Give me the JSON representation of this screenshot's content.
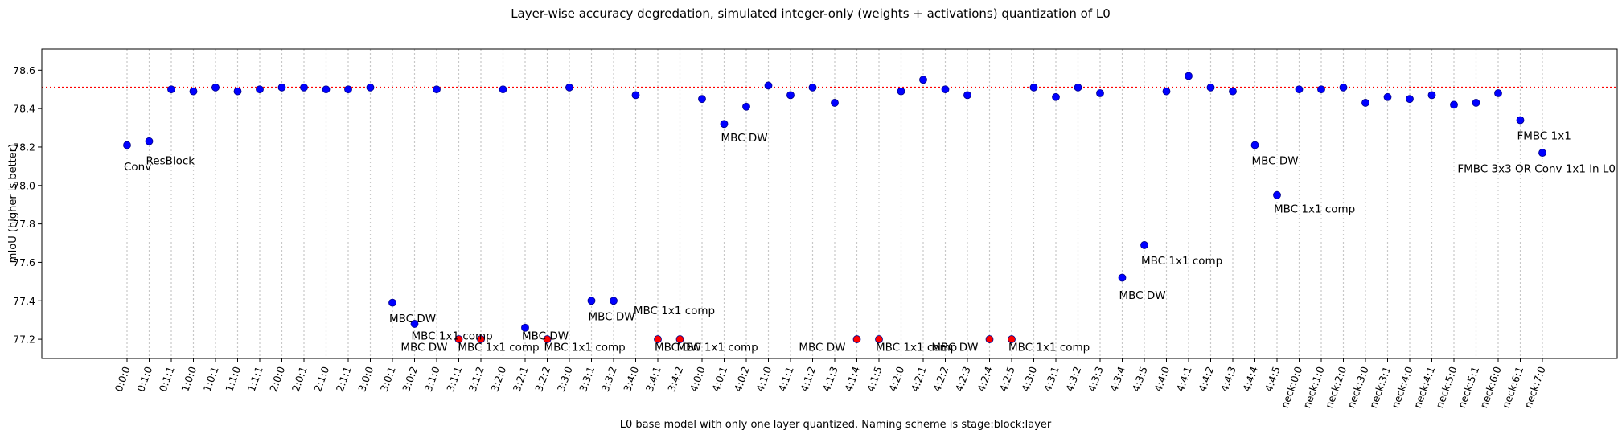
{
  "chart_data": {
    "type": "scatter",
    "title": "Layer-wise accuracy degredation, simulated integer-only (weights + activations) quantization of L0",
    "xlabel": "L0 base model with only one layer quantized. Naming scheme is stage:block:layer",
    "ylabel": "mIoU (higher is better)",
    "ylim": [
      77.1,
      78.71
    ],
    "yticks": [
      "77.2",
      "77.4",
      "77.6",
      "77.8",
      "78.0",
      "78.2",
      "78.4",
      "78.6"
    ],
    "baseline": 78.51,
    "grid": "vertical dotted lines at each category",
    "colors": {
      "point": "#0000ff",
      "clipped_point": "#ff0000",
      "baseline": "#ff0000",
      "grid": "#c8c8c8"
    },
    "categories": [
      "0:0:0",
      "0:1:0",
      "0:1:1",
      "1:0:0",
      "1:0:1",
      "1:1:0",
      "1:1:1",
      "2:0:0",
      "2:0:1",
      "2:1:0",
      "2:1:1",
      "3:0:0",
      "3:0:1",
      "3:0:2",
      "3:1:0",
      "3:1:1",
      "3:1:2",
      "3:2:0",
      "3:2:1",
      "3:2:2",
      "3:3:0",
      "3:3:1",
      "3:3:2",
      "3:4:0",
      "3:4:1",
      "3:4:2",
      "4:0:0",
      "4:0:1",
      "4:0:2",
      "4:1:0",
      "4:1:1",
      "4:1:2",
      "4:1:3",
      "4:1:4",
      "4:1:5",
      "4:2:0",
      "4:2:1",
      "4:2:2",
      "4:2:3",
      "4:2:4",
      "4:2:5",
      "4:3:0",
      "4:3:1",
      "4:3:2",
      "4:3:3",
      "4:3:4",
      "4:3:5",
      "4:4:0",
      "4:4:1",
      "4:4:2",
      "4:4:3",
      "4:4:4",
      "4:4:5",
      "neck:0:0",
      "neck:1:0",
      "neck:2:0",
      "neck:3:0",
      "neck:3:1",
      "neck:4:0",
      "neck:4:1",
      "neck:5:0",
      "neck:5:1",
      "neck:6:0",
      "neck:6:1",
      "neck:7:0"
    ],
    "values": [
      78.21,
      78.23,
      78.5,
      78.49,
      78.51,
      78.49,
      78.5,
      78.51,
      78.51,
      78.5,
      78.5,
      78.51,
      77.39,
      77.28,
      78.5,
      77.2,
      77.2,
      78.5,
      77.26,
      77.2,
      78.51,
      77.4,
      77.4,
      78.47,
      77.2,
      77.2,
      78.45,
      78.32,
      78.41,
      78.52,
      78.47,
      78.51,
      78.43,
      77.2,
      77.2,
      78.49,
      78.55,
      78.5,
      78.47,
      77.2,
      77.2,
      78.51,
      78.46,
      78.51,
      78.48,
      77.52,
      77.69,
      78.49,
      78.57,
      78.51,
      78.49,
      78.21,
      77.95,
      78.5,
      78.5,
      78.51,
      78.43,
      78.46,
      78.45,
      78.47,
      78.42,
      78.43,
      78.48,
      78.34,
      78.17
    ],
    "clipped": [
      "3:1:1",
      "3:1:2",
      "3:2:2",
      "3:4:1",
      "3:4:2",
      "4:1:4",
      "4:1:5",
      "4:2:4",
      "4:2:5"
    ],
    "annotations": [
      {
        "category": "0:0:0",
        "text": "Conv",
        "y": 78.1
      },
      {
        "category": "0:1:0",
        "text": "ResBlock",
        "y": 78.13
      },
      {
        "category": "3:0:1",
        "text": "MBC DW",
        "y": 77.31
      },
      {
        "category": "3:0:2",
        "text": "MBC 1x1 comp",
        "y": 77.22
      },
      {
        "category": "3:1:1",
        "text": "MBC DW",
        "y": 77.16,
        "align": "end"
      },
      {
        "category": "3:1:2",
        "text": "MBC 1x1 comp",
        "y": 77.16,
        "align": "middle"
      },
      {
        "category": "3:2:1",
        "text": "MBC DW",
        "y": 77.22
      },
      {
        "category": "3:2:2",
        "text": "MBC 1x1 comp",
        "y": 77.16
      },
      {
        "category": "3:3:1",
        "text": "MBC DW",
        "y": 77.32
      },
      {
        "category": "3:3:2",
        "text": "MBC 1x1 comp",
        "y": 77.35,
        "dx": 1.05
      },
      {
        "category": "3:4:1",
        "text": "MBC DW",
        "y": 77.16
      },
      {
        "category": "3:4:2",
        "text": "MBC 1x1 comp",
        "y": 77.16
      },
      {
        "category": "4:0:1",
        "text": "MBC DW",
        "y": 78.25
      },
      {
        "category": "4:1:4",
        "text": "MBC DW",
        "y": 77.16,
        "align": "end"
      },
      {
        "category": "4:1:5",
        "text": "MBC 1x1 comp",
        "y": 77.16
      },
      {
        "category": "4:2:4",
        "text": "MBC DW",
        "y": 77.16,
        "align": "end"
      },
      {
        "category": "4:2:5",
        "text": "MBC 1x1 comp",
        "y": 77.16
      },
      {
        "category": "4:3:4",
        "text": "MBC DW",
        "y": 77.43
      },
      {
        "category": "4:3:5",
        "text": "MBC 1x1 comp",
        "y": 77.61
      },
      {
        "category": "4:4:4",
        "text": "MBC DW",
        "y": 78.13
      },
      {
        "category": "4:4:5",
        "text": "MBC 1x1 comp",
        "y": 77.88
      },
      {
        "category": "neck:6:1",
        "text": "FMBC 1x1",
        "y": 78.26
      },
      {
        "category": "neck:7:0",
        "text": "FMBC 3x3 OR Conv 1x1 in L0",
        "y": 78.09,
        "align": "middle-shift"
      }
    ]
  }
}
